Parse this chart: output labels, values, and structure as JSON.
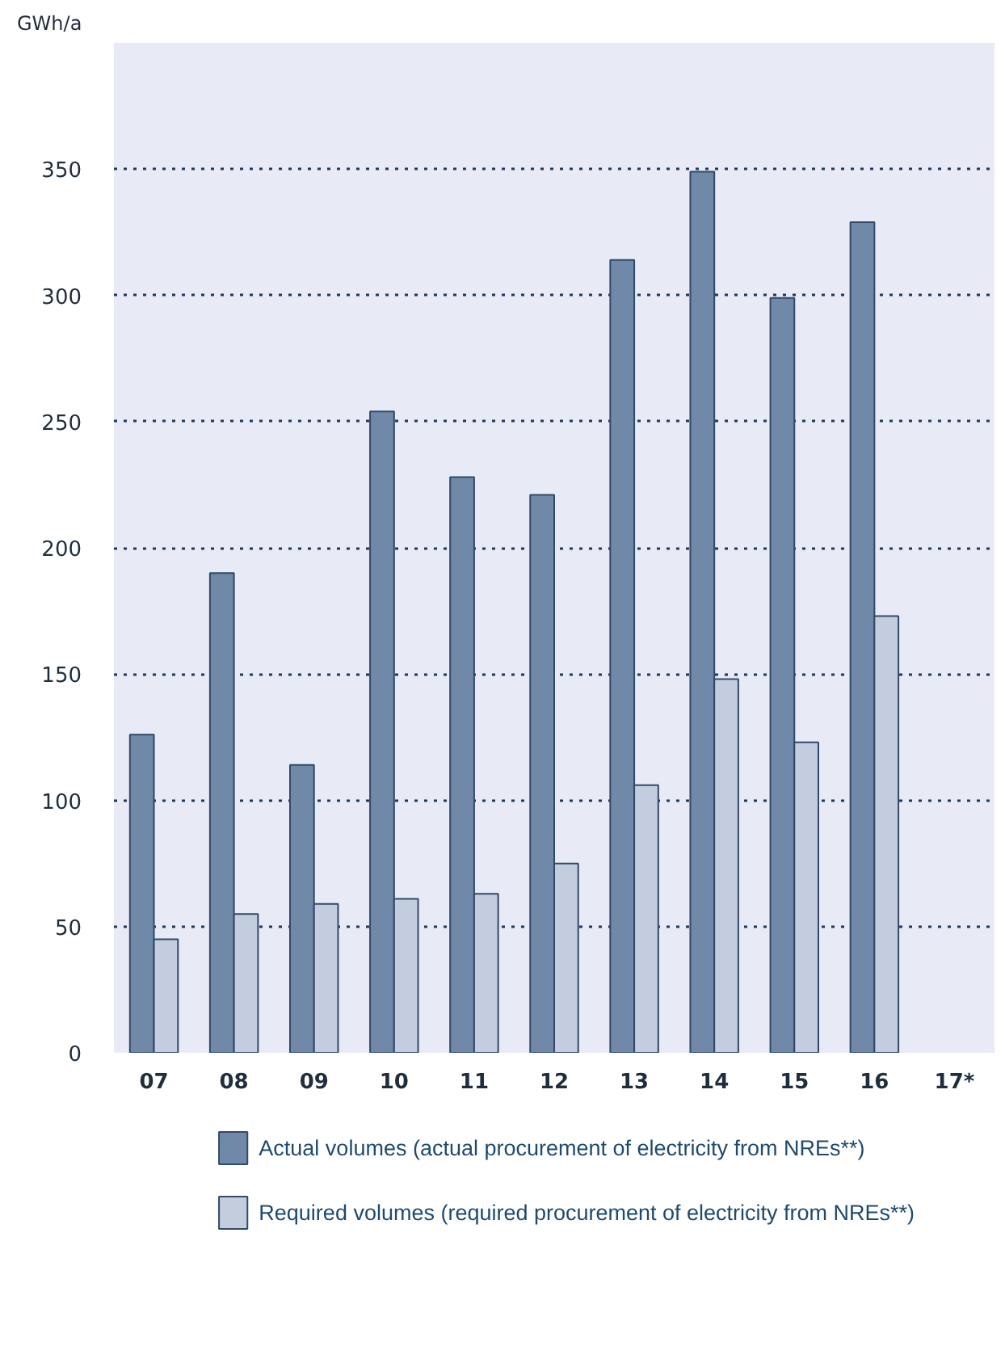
{
  "chart_data": {
    "type": "bar",
    "ylabel": "GWh/a",
    "categories": [
      "07",
      "08",
      "09",
      "10",
      "11",
      "12",
      "13",
      "14",
      "15",
      "16",
      "17*"
    ],
    "series": [
      {
        "name": "Actual volumes (actual procurement of electricity from NREs**)",
        "color": "#7189a8",
        "values": [
          126,
          190,
          114,
          254,
          228,
          221,
          314,
          349,
          299,
          329,
          null
        ]
      },
      {
        "name": "Required volumes (required procurement of electricity from NREs**)",
        "color": "#c3cddd",
        "values": [
          45,
          55,
          59,
          61,
          63,
          75,
          106,
          148,
          123,
          173,
          null
        ]
      }
    ],
    "ylim": [
      0,
      400
    ],
    "yticks": [
      0,
      50,
      100,
      150,
      200,
      250,
      300,
      350,
      {
        "value": 400,
        "label": null
      }
    ],
    "grid": "y",
    "legend": "bottom"
  }
}
